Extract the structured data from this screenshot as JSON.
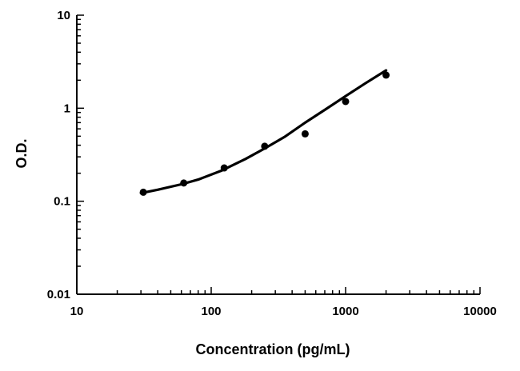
{
  "chart_data": {
    "type": "scatter",
    "title": "",
    "xlabel": "Concentration (pg/mL)",
    "ylabel": "O.D.",
    "x_scale": "log",
    "y_scale": "log",
    "xlim": [
      10,
      10000
    ],
    "ylim": [
      0.01,
      10
    ],
    "x_ticks": [
      "10",
      "100",
      "1000",
      "10000"
    ],
    "y_ticks": [
      "0.01",
      "0.1",
      "1",
      "10"
    ],
    "grid": false,
    "legend": "none",
    "series": [
      {
        "kind": "points",
        "x": [
          31.25,
          62.5,
          125,
          250,
          500,
          1000,
          2000
        ],
        "y": [
          0.125,
          0.157,
          0.228,
          0.39,
          0.53,
          1.18,
          2.27
        ]
      },
      {
        "kind": "fitted-curve",
        "x": [
          30,
          40,
          60,
          80,
          120,
          180,
          250,
          350,
          500,
          700,
          1000,
          1400,
          2000
        ],
        "y": [
          0.122,
          0.133,
          0.152,
          0.171,
          0.214,
          0.285,
          0.37,
          0.49,
          0.7,
          0.96,
          1.35,
          1.85,
          2.55
        ]
      }
    ],
    "colors": {
      "marks": "#000000",
      "axes": "#000000"
    }
  }
}
